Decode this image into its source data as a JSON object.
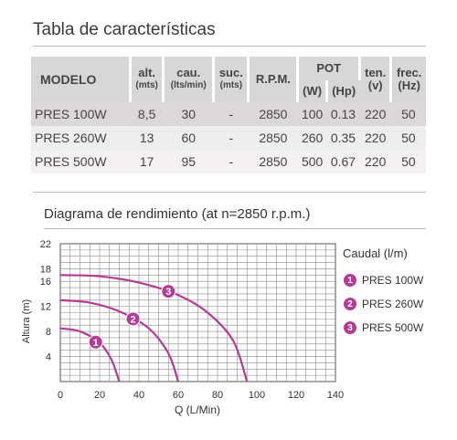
{
  "page": {
    "title": "Tabla de características"
  },
  "table": {
    "headers": {
      "modelo": "MODELO",
      "alt": "alt.",
      "alt_unit": "(mts)",
      "cau": "cau.",
      "cau_unit": "(lts/min)",
      "suc": "suc.",
      "suc_unit": "(mts)",
      "rpm": "R.P.M.",
      "pot": "POT",
      "pot_w": "(W)",
      "pot_hp": "(Hp)",
      "ten": "ten.",
      "ten_unit": "(v)",
      "frec": "frec.",
      "frec_unit": "(Hz)"
    },
    "rows": [
      {
        "model": "PRES 100W",
        "alt": "8,5",
        "cau": "30",
        "suc": "-",
        "rpm": "2850",
        "w": "100",
        "hp": "0.13",
        "ten": "220",
        "hz": "50"
      },
      {
        "model": "PRES 260W",
        "alt": "13",
        "cau": "60",
        "suc": "-",
        "rpm": "2850",
        "w": "260",
        "hp": "0.35",
        "ten": "220",
        "hz": "50"
      },
      {
        "model": "PRES 500W",
        "alt": "17",
        "cau": "95",
        "suc": "-",
        "rpm": "2850",
        "w": "500",
        "hp": "0.67",
        "ten": "220",
        "hz": "50"
      }
    ]
  },
  "chart_title": "Diagrama de rendimiento (at n=2850 r.p.m.)",
  "chart_data": {
    "type": "line",
    "xlabel": "Q (L/Min)",
    "ylabel": "Altura (m)",
    "xlim": [
      0,
      140
    ],
    "ylim": [
      0,
      22
    ],
    "xticks": [
      "0",
      "20",
      "40",
      "60",
      "80",
      "100",
      "120",
      "140"
    ],
    "yticks": [
      "4",
      "8",
      "12",
      "16",
      "18",
      "22"
    ],
    "grid": true,
    "legend_title": "Caudal (l/m)",
    "color": "#b53b96",
    "series": [
      {
        "name": "PRES 100W",
        "badge": "1",
        "points": [
          [
            0,
            8.5
          ],
          [
            10,
            8.0
          ],
          [
            20,
            6.2
          ],
          [
            26,
            3.5
          ],
          [
            30,
            0
          ]
        ],
        "marker": [
          18,
          6.3
        ]
      },
      {
        "name": "PRES 260W",
        "badge": "2",
        "points": [
          [
            0,
            13
          ],
          [
            15,
            12.6
          ],
          [
            30,
            11.2
          ],
          [
            45,
            8.5
          ],
          [
            55,
            4.5
          ],
          [
            60,
            0
          ]
        ],
        "marker": [
          37,
          10.0
        ]
      },
      {
        "name": "PRES 500W",
        "badge": "3",
        "points": [
          [
            0,
            17
          ],
          [
            20,
            16.8
          ],
          [
            40,
            15.8
          ],
          [
            60,
            13.8
          ],
          [
            75,
            11
          ],
          [
            88,
            6.5
          ],
          [
            95,
            0
          ]
        ],
        "marker": [
          55,
          14.4
        ]
      }
    ]
  }
}
